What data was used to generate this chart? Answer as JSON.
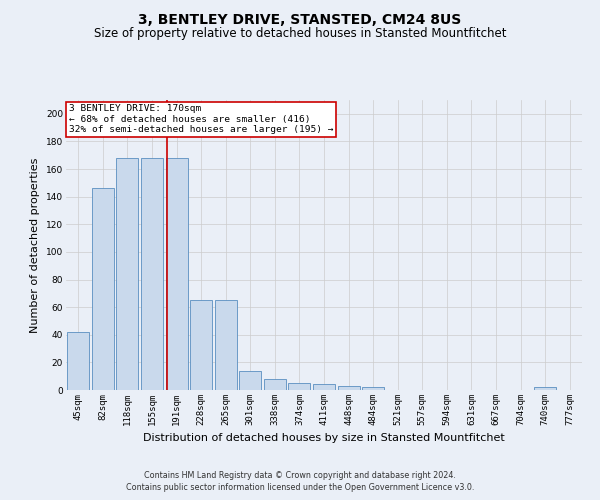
{
  "title": "3, BENTLEY DRIVE, STANSTED, CM24 8US",
  "subtitle": "Size of property relative to detached houses in Stansted Mountfitchet",
  "xlabel": "Distribution of detached houses by size in Stansted Mountfitchet",
  "ylabel": "Number of detached properties",
  "footnote1": "Contains HM Land Registry data © Crown copyright and database right 2024.",
  "footnote2": "Contains public sector information licensed under the Open Government Licence v3.0.",
  "categories": [
    "45sqm",
    "82sqm",
    "118sqm",
    "155sqm",
    "191sqm",
    "228sqm",
    "265sqm",
    "301sqm",
    "338sqm",
    "374sqm",
    "411sqm",
    "448sqm",
    "484sqm",
    "521sqm",
    "557sqm",
    "594sqm",
    "631sqm",
    "667sqm",
    "704sqm",
    "740sqm",
    "777sqm"
  ],
  "values": [
    42,
    146,
    168,
    168,
    168,
    65,
    65,
    14,
    8,
    5,
    4,
    3,
    2,
    0,
    0,
    0,
    0,
    0,
    0,
    2,
    0
  ],
  "bar_color": "#c9d9ec",
  "bar_edge_color": "#5a8fc0",
  "annotation_text1": "3 BENTLEY DRIVE: 170sqm",
  "annotation_text2": "← 68% of detached houses are smaller (416)",
  "annotation_text3": "32% of semi-detached houses are larger (195) →",
  "annotation_box_color": "#ffffff",
  "annotation_border_color": "#cc0000",
  "red_line_x": 3.6,
  "ylim": [
    0,
    210
  ],
  "yticks": [
    0,
    20,
    40,
    60,
    80,
    100,
    120,
    140,
    160,
    180,
    200
  ],
  "grid_color": "#cccccc",
  "bg_color": "#eaeff7",
  "title_fontsize": 10,
  "subtitle_fontsize": 8.5,
  "ylabel_fontsize": 8,
  "xlabel_fontsize": 8,
  "tick_fontsize": 6.5,
  "annotation_fontsize": 6.8,
  "footnote_fontsize": 5.8
}
